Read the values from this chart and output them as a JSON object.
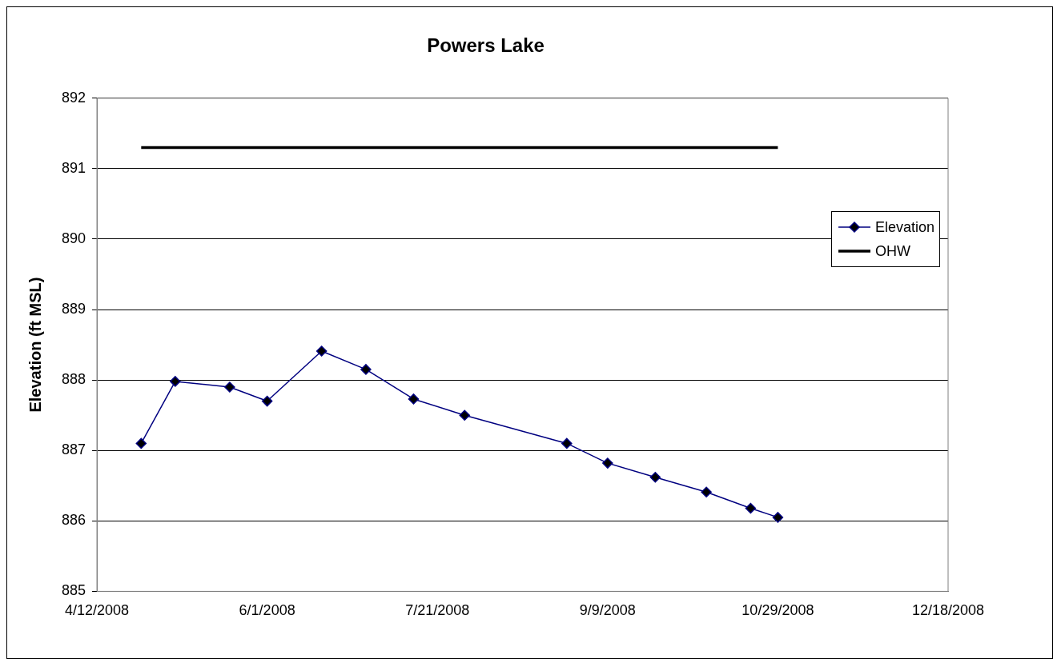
{
  "chart_data": {
    "type": "line",
    "title": "Powers Lake",
    "ylabel": "Elevation (ft MSL)",
    "x": [
      "2008-04-25",
      "2008-05-05",
      "2008-05-21",
      "2008-06-01",
      "2008-06-17",
      "2008-06-30",
      "2008-07-14",
      "2008-07-29",
      "2008-08-28",
      "2008-09-09",
      "2008-09-23",
      "2008-10-08",
      "2008-10-21",
      "2008-10-29"
    ],
    "series": [
      {
        "name": "Elevation",
        "color": "#000080",
        "marker": "diamond",
        "values": [
          887.1,
          887.98,
          887.9,
          887.7,
          888.41,
          888.15,
          887.73,
          887.5,
          887.1,
          886.82,
          886.62,
          886.41,
          886.18,
          886.05
        ]
      },
      {
        "name": "OHW",
        "color": "#000000",
        "marker": "none",
        "values": [
          891.3,
          891.3,
          891.3,
          891.3,
          891.3,
          891.3,
          891.3,
          891.3,
          891.3,
          891.3,
          891.3,
          891.3,
          891.3,
          891.3
        ]
      }
    ],
    "xlim": [
      "2008-04-12",
      "2008-12-18"
    ],
    "xticks": [
      {
        "value": "2008-04-12",
        "label": "4/12/2008"
      },
      {
        "value": "2008-06-01",
        "label": "6/1/2008"
      },
      {
        "value": "2008-07-21",
        "label": "7/21/2008"
      },
      {
        "value": "2008-09-09",
        "label": "9/9/2008"
      },
      {
        "value": "2008-10-29",
        "label": "10/29/2008"
      },
      {
        "value": "2008-12-18",
        "label": "12/18/2008"
      }
    ],
    "ylim": [
      885,
      892
    ],
    "yticks": [
      885,
      886,
      887,
      888,
      889,
      890,
      891,
      892
    ],
    "grid": "y",
    "legend": "right",
    "line_style": "solid"
  }
}
